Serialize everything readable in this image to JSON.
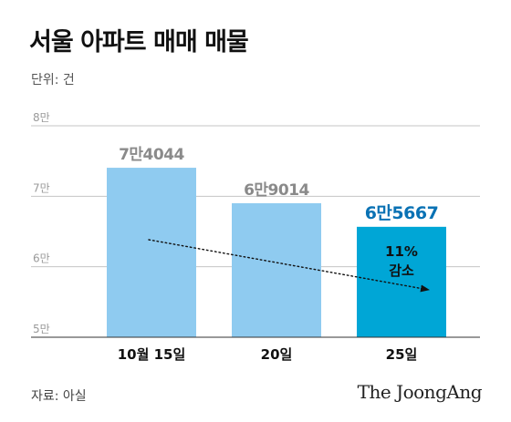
{
  "title": "서울 아파트 매매 매물",
  "unit_label": "단위: 건",
  "source": "자료: 아실",
  "brand": "The JoongAng",
  "colors": {
    "bar": "#8FCBF0",
    "bar_highlight": "#00A6D6",
    "value_label": "#8a8a8a",
    "value_label_highlight": "#0a72b4",
    "grid": "#c4c4c4"
  },
  "chart_data": {
    "type": "bar",
    "categories": [
      "10월 15일",
      "20일",
      "25일"
    ],
    "values": [
      74044,
      69014,
      65667
    ],
    "value_labels": [
      "7만4044",
      "6만9014",
      "6만5667"
    ],
    "highlight_index": 2,
    "ylim": [
      50000,
      80000
    ],
    "yticks": [
      50000,
      60000,
      70000,
      80000
    ],
    "ytick_labels": [
      "5만",
      "6만",
      "7만",
      "8만"
    ],
    "grid": true,
    "annotation": {
      "line1": "11%",
      "line2": "감소"
    },
    "trend_arrow": {
      "from_index": 0,
      "to_index": 2,
      "style": "dotted"
    }
  }
}
